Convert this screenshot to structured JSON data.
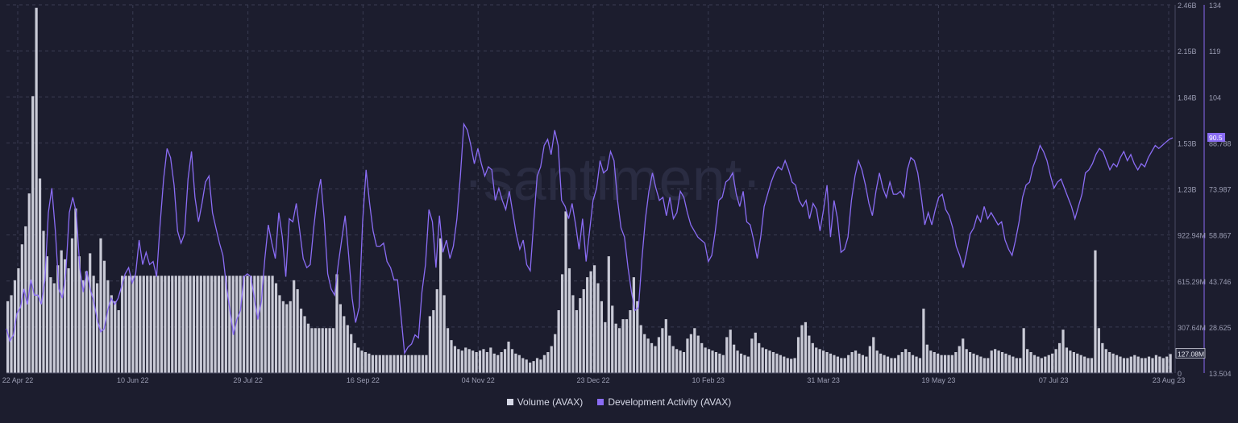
{
  "chart_data": {
    "type": "bar+line",
    "watermark": "·santiment·",
    "x_ticks": [
      "22 Apr 22",
      "10 Jun 22",
      "29 Jul 22",
      "16 Sep 22",
      "04 Nov 22",
      "23 Dec 22",
      "10 Feb 23",
      "31 Mar 23",
      "19 May 23",
      "07 Jul 23",
      "23 Aug 23"
    ],
    "y_left": {
      "ticks": [
        "2.46B",
        "2.15B",
        "1.84B",
        "1.53B",
        "1.23B",
        "922.94M",
        "615.29M",
        "307.64M",
        "0"
      ],
      "ylim": [
        0,
        2460000000
      ],
      "current_label": "127.08M"
    },
    "y_right": {
      "ticks": [
        "134",
        "119",
        "104",
        "88.788",
        "73.987",
        "58.867",
        "43.746",
        "28.625",
        "13.504"
      ],
      "ylim": [
        13.504,
        134
      ],
      "current_label": "90.5"
    },
    "series": [
      {
        "name": "Volume (AVAX)",
        "kind": "bar",
        "axis": "left",
        "color": "#c9cad6",
        "values": [
          480,
          520,
          620,
          700,
          860,
          980,
          1200,
          1850,
          2440,
          1300,
          950,
          780,
          640,
          600,
          720,
          820,
          760,
          700,
          900,
          1100,
          780,
          620,
          680,
          800,
          650,
          600,
          900,
          750,
          620,
          520,
          480,
          420,
          650,
          650,
          650,
          650,
          650,
          650,
          650,
          650,
          650,
          650,
          650,
          650,
          650,
          650,
          650,
          650,
          650,
          650,
          650,
          650,
          650,
          650,
          650,
          650,
          650,
          650,
          650,
          650,
          650,
          650,
          650,
          650,
          650,
          650,
          650,
          650,
          650,
          650,
          650,
          650,
          650,
          650,
          650,
          600,
          520,
          480,
          460,
          480,
          620,
          560,
          430,
          380,
          330,
          300,
          300,
          300,
          300,
          300,
          300,
          300,
          660,
          460,
          380,
          320,
          260,
          200,
          170,
          150,
          140,
          130,
          120,
          120,
          120,
          120,
          120,
          120,
          120,
          120,
          120,
          120,
          120,
          120,
          120,
          120,
          120,
          120,
          380,
          420,
          560,
          900,
          520,
          300,
          220,
          180,
          160,
          150,
          170,
          160,
          150,
          140,
          150,
          160,
          140,
          170,
          130,
          120,
          140,
          160,
          210,
          160,
          130,
          120,
          100,
          90,
          70,
          80,
          100,
          90,
          120,
          140,
          180,
          260,
          420,
          660,
          1080,
          700,
          520,
          420,
          500,
          560,
          640,
          680,
          720,
          600,
          480,
          340,
          780,
          450,
          330,
          300,
          360,
          360,
          420,
          640,
          480,
          320,
          260,
          230,
          200,
          180,
          240,
          300,
          360,
          250,
          180,
          160,
          150,
          140,
          230,
          260,
          300,
          250,
          200,
          170,
          160,
          150,
          140,
          130,
          120,
          240,
          290,
          190,
          150,
          130,
          120,
          110,
          230,
          270,
          200,
          170,
          160,
          150,
          140,
          130,
          120,
          110,
          100,
          95,
          100,
          240,
          320,
          340,
          250,
          200,
          170,
          160,
          150,
          140,
          130,
          120,
          110,
          100,
          100,
          120,
          140,
          150,
          130,
          120,
          110,
          180,
          240,
          150,
          130,
          120,
          110,
          100,
          100,
          120,
          140,
          160,
          140,
          120,
          110,
          100,
          430,
          190,
          150,
          140,
          130,
          120,
          120,
          120,
          120,
          140,
          180,
          230,
          160,
          140,
          130,
          120,
          110,
          100,
          100,
          150,
          160,
          150,
          140,
          130,
          120,
          110,
          100,
          100,
          300,
          160,
          140,
          120,
          110,
          100,
          110,
          120,
          130,
          160,
          200,
          290,
          170,
          150,
          140,
          130,
          120,
          110,
          100,
          100,
          820,
          300,
          200,
          160,
          140,
          130,
          120,
          110,
          100,
          100,
          110,
          120,
          110,
          100,
          100,
          110,
          100,
          120,
          110,
          100,
          110,
          127
        ]
      },
      {
        "name": "Development Activity (AVAX)",
        "kind": "line",
        "axis": "right",
        "color": "#8a6cf4",
        "values": [
          28,
          24,
          26,
          33,
          35,
          41,
          36,
          44,
          39,
          39,
          36,
          44,
          66,
          74,
          60,
          41,
          38,
          46,
          66,
          71,
          66,
          48,
          40,
          47,
          41,
          37,
          31,
          27,
          28,
          34,
          38,
          36,
          38,
          42,
          46,
          48,
          43,
          46,
          57,
          49,
          53,
          49,
          50,
          45,
          62,
          77,
          87,
          84,
          75,
          60,
          56,
          59,
          77,
          86,
          71,
          63,
          69,
          76,
          78,
          66,
          61,
          56,
          52,
          42,
          34,
          26,
          31,
          34,
          45,
          46,
          45,
          38,
          31,
          37,
          51,
          62,
          56,
          51,
          66,
          58,
          45,
          64,
          63,
          69,
          60,
          51,
          48,
          49,
          61,
          71,
          77,
          64,
          46,
          41,
          39,
          49,
          57,
          65,
          52,
          38,
          30,
          35,
          63,
          80,
          69,
          60,
          55,
          55,
          56,
          50,
          48,
          44,
          44,
          32,
          20,
          22,
          23,
          26,
          25,
          40,
          49,
          67,
          63,
          48,
          65,
          53,
          57,
          51,
          55,
          64,
          78,
          95,
          93,
          88,
          82,
          87,
          82,
          78,
          81,
          80,
          70,
          74,
          70,
          67,
          73,
          66,
          59,
          54,
          57,
          49,
          47,
          63,
          78,
          81,
          88,
          90,
          85,
          93,
          88,
          70,
          68,
          64,
          69,
          62,
          54,
          64,
          50,
          60,
          70,
          74,
          83,
          79,
          80,
          86,
          83,
          70,
          61,
          58,
          48,
          40,
          34,
          35,
          51,
          64,
          73,
          79,
          74,
          70,
          71,
          65,
          71,
          64,
          66,
          73,
          71,
          66,
          62,
          60,
          58,
          57,
          56,
          50,
          52,
          60,
          70,
          71,
          76,
          77,
          79,
          72,
          68,
          73,
          63,
          62,
          57,
          51,
          58,
          68,
          72,
          76,
          79,
          81,
          80,
          83,
          80,
          76,
          75,
          70,
          68,
          70,
          64,
          69,
          67,
          60,
          67,
          75,
          58,
          70,
          64,
          53,
          54,
          58,
          70,
          78,
          83,
          80,
          75,
          69,
          65,
          73,
          79,
          74,
          71,
          76,
          72,
          72,
          73,
          71,
          80,
          84,
          83,
          79,
          71,
          62,
          66,
          62,
          67,
          71,
          72,
          67,
          65,
          61,
          55,
          52,
          48,
          53,
          59,
          61,
          65,
          63,
          68,
          64,
          66,
          64,
          62,
          63,
          57,
          54,
          52,
          57,
          63,
          71,
          75,
          76,
          81,
          84,
          88,
          86,
          83,
          78,
          74,
          76,
          77,
          74,
          71,
          68,
          64,
          68,
          72,
          79,
          80,
          82,
          85,
          87,
          86,
          83,
          80,
          82,
          81,
          84,
          86,
          83,
          85,
          82,
          80,
          82,
          81,
          84,
          86,
          88,
          87,
          88,
          89,
          90,
          90.5
        ]
      }
    ],
    "legend": [
      "Volume (AVAX)",
      "Development Activity (AVAX)"
    ],
    "colors": {
      "background": "#1c1d2e",
      "volume": "#c9cad6",
      "dev_activity": "#8a6cf4",
      "grid": "#3a3c52",
      "tick_text": "#9a9cb2"
    }
  }
}
